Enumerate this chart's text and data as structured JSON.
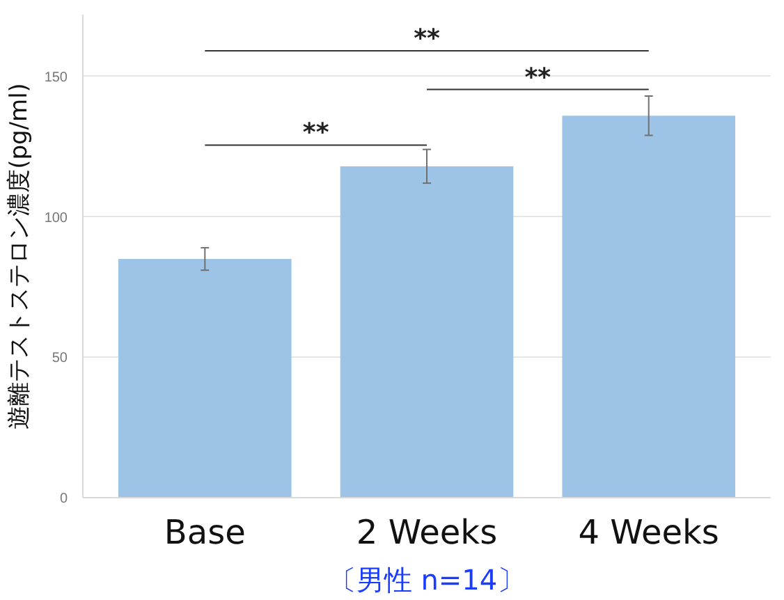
{
  "chart_data": {
    "type": "bar",
    "categories": [
      "Base",
      "2 Weeks",
      "4 Weeks"
    ],
    "values": [
      85,
      118,
      136
    ],
    "errors": [
      4,
      6,
      7
    ],
    "color": "#9dc3e6",
    "ylabel": "遊離テストステロン濃度(pg/ml)",
    "xlabel": "〔男性 n=14〕",
    "ylim": [
      0,
      172
    ],
    "yticks": [
      0,
      50,
      100,
      150
    ],
    "grid": "y",
    "annotations": [
      "**",
      "**",
      "**"
    ]
  }
}
